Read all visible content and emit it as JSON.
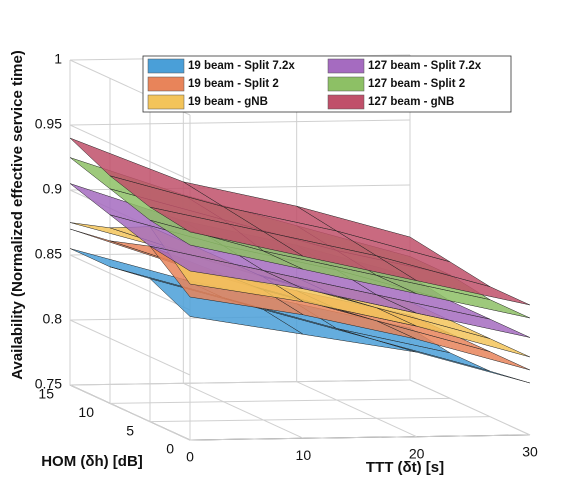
{
  "chart_data": {
    "type": "surface",
    "zlabel": "Availability (Normalized effective service time)",
    "xlabel": "TTT (δt) [s]",
    "ylabel": "HOM (δh) [dB]",
    "x": [
      0,
      10,
      20,
      30
    ],
    "y": [
      0,
      5,
      10,
      15
    ],
    "xlim": [
      0,
      30
    ],
    "ylim": [
      0,
      15
    ],
    "zlim": [
      0.75,
      1
    ],
    "xticks": [
      0,
      10,
      20,
      30
    ],
    "yticks": [
      0,
      5,
      10,
      15
    ],
    "zticks": [
      0.75,
      0.8,
      0.85,
      0.9,
      0.95,
      1
    ],
    "grid": true,
    "series": [
      {
        "name": "19 beam - Split 7.2x",
        "color": "#4a9fd8",
        "values": [
          [
            0.845,
            0.83,
            0.815,
            0.79
          ],
          [
            0.86,
            0.835,
            0.81,
            0.785
          ],
          [
            0.855,
            0.83,
            0.805,
            0.785
          ],
          [
            0.855,
            0.83,
            0.81,
            0.79
          ]
        ]
      },
      {
        "name": "19 beam - Split 2",
        "color": "#e8845a",
        "values": [
          [
            0.86,
            0.845,
            0.825,
            0.8
          ],
          [
            0.885,
            0.85,
            0.825,
            0.8
          ],
          [
            0.875,
            0.845,
            0.82,
            0.8
          ],
          [
            0.87,
            0.84,
            0.82,
            0.8
          ]
        ]
      },
      {
        "name": "19 beam - gNB",
        "color": "#f3c45a",
        "values": [
          [
            0.87,
            0.855,
            0.835,
            0.81
          ],
          [
            0.9,
            0.86,
            0.835,
            0.81
          ],
          [
            0.885,
            0.855,
            0.83,
            0.81
          ],
          [
            0.875,
            0.85,
            0.83,
            0.81
          ]
        ]
      },
      {
        "name": "127 beam - Split 7.2x",
        "color": "#a56bc0",
        "values": [
          [
            0.88,
            0.865,
            0.845,
            0.825
          ],
          [
            0.885,
            0.865,
            0.845,
            0.825
          ],
          [
            0.895,
            0.87,
            0.85,
            0.825
          ],
          [
            0.905,
            0.875,
            0.855,
            0.83
          ]
        ]
      },
      {
        "name": "127 beam - Split 2",
        "color": "#8dc065",
        "values": [
          [
            0.9,
            0.88,
            0.86,
            0.84
          ],
          [
            0.905,
            0.88,
            0.86,
            0.84
          ],
          [
            0.915,
            0.89,
            0.865,
            0.845
          ],
          [
            0.925,
            0.895,
            0.87,
            0.845
          ]
        ]
      },
      {
        "name": "127 beam - gNB",
        "color": "#c0506a",
        "values": [
          [
            0.91,
            0.89,
            0.87,
            0.85
          ],
          [
            0.915,
            0.895,
            0.875,
            0.85
          ],
          [
            0.925,
            0.9,
            0.88,
            0.855
          ],
          [
            0.94,
            0.905,
            0.885,
            0.86
          ]
        ]
      }
    ]
  }
}
